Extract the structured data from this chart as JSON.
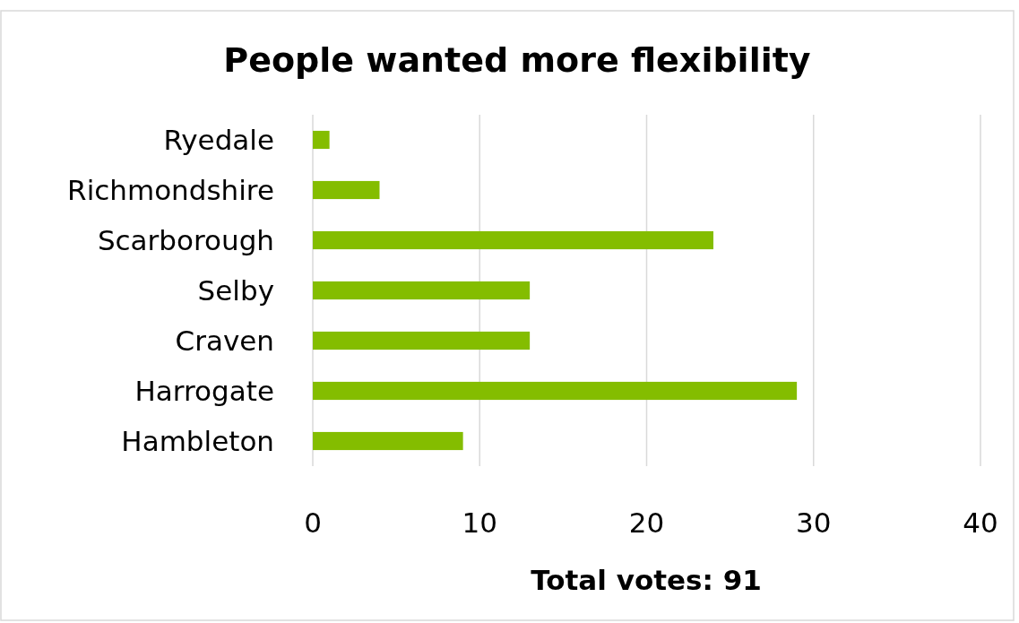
{
  "chart_data": {
    "type": "bar",
    "orientation": "horizontal",
    "title": "People wanted more flexibility",
    "xlabel": "Total votes: 91",
    "categories": [
      "Ryedale",
      "Richmondshire",
      "Scarborough",
      "Selby",
      "Craven",
      "Harrogate",
      "Hambleton"
    ],
    "values": [
      1,
      4,
      24,
      13,
      13,
      29,
      9
    ],
    "color": "#84bd00",
    "xlim": [
      0,
      40
    ],
    "xticks": [
      0,
      10,
      20,
      30,
      40
    ],
    "grid": "x"
  }
}
